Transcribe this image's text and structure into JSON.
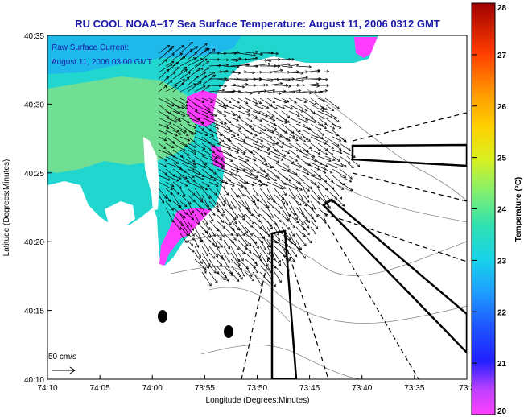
{
  "chart_data": {
    "type": "heatmap",
    "title": "RU COOL  NOAA–17  Sea Surface Temperature:  August 11, 2006 0312 GMT",
    "overlay_title": "Raw Surface Current:",
    "overlay_time": "August 11, 2006 03:00 GMT",
    "xlabel": "Longitude (Degrees:Minutes)",
    "ylabel": "Latitude (Degrees:Minutes)",
    "x_ticks": [
      "74:10",
      "74:05",
      "74:00",
      "73:55",
      "73:50",
      "73:45",
      "73:40",
      "73:35",
      "73:3"
    ],
    "y_ticks": [
      "40:35",
      "40:30",
      "40:25",
      "40:20",
      "40:15",
      "40:10"
    ],
    "scale_label": "50 cm/s",
    "colorbar": {
      "label": "Temperature (°C)",
      "ticks": [
        20,
        21,
        22,
        23,
        24,
        25,
        26,
        27,
        28
      ],
      "range": [
        20,
        28
      ]
    }
  },
  "colors": {
    "title": "#1a1aa6",
    "land": "#ffffff",
    "vectors": "#000000"
  }
}
